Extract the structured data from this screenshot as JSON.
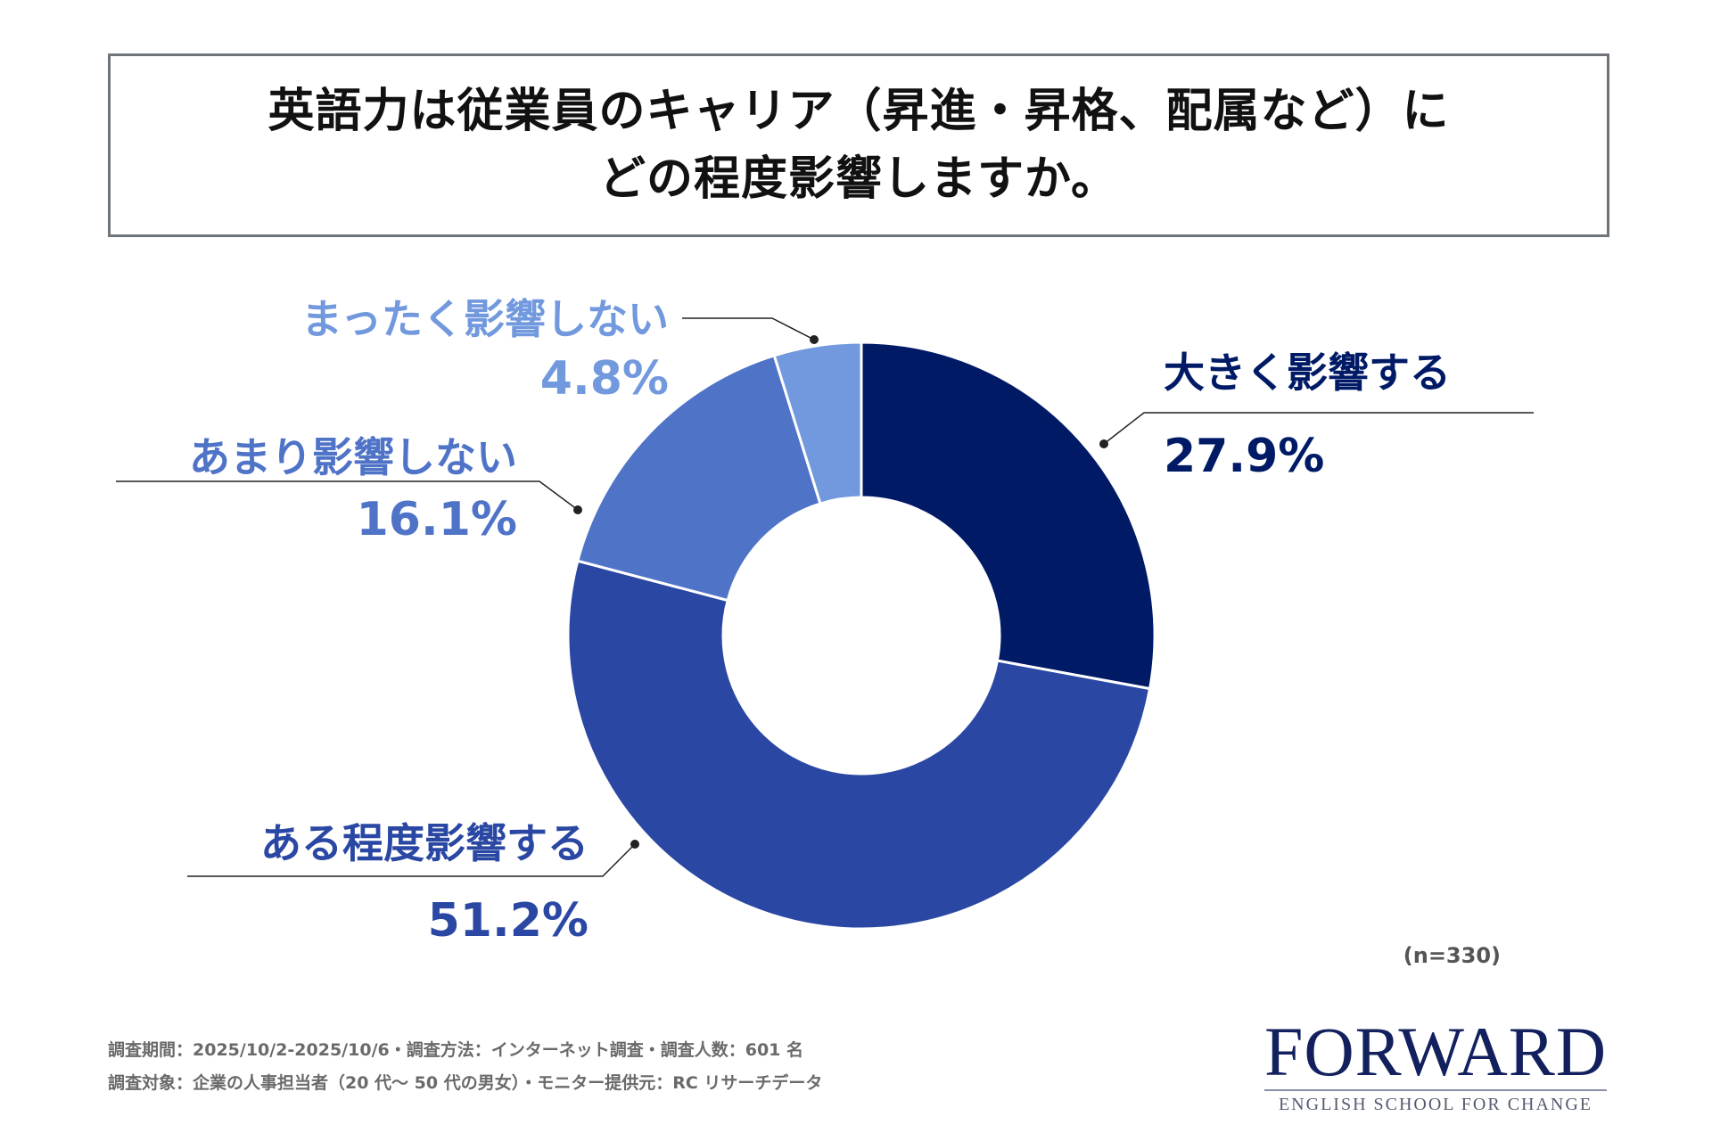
{
  "title": {
    "line1": "英語力は従業員のキャリア（昇進・昇格、配属など）に",
    "line2": "どの程度影響しますか。"
  },
  "chart_data": {
    "type": "pie",
    "donut": true,
    "title": "英語力は従業員のキャリア（昇進・昇格、配属など）にどの程度影響しますか。",
    "categories": [
      "大きく影響する",
      "ある程度影響する",
      "あまり影響しない",
      "まったく影響しない"
    ],
    "values": [
      27.9,
      51.2,
      16.1,
      4.8
    ],
    "value_labels": [
      "27.9%",
      "51.2%",
      "16.1%",
      "4.8%"
    ],
    "colors": [
      "#001a66",
      "#2a48a3",
      "#4f73c7",
      "#7299de"
    ],
    "start": "12 o'clock",
    "direction": "clockwise"
  },
  "sample_size": "(n=330)",
  "footnotes": {
    "line1": "調査期間：2025/10/2-2025/10/6・調査方法：インターネット調査・調査人数：601 名",
    "line2": "調査対象：企業の人事担当者（20 代〜 50 代の男女）・モニター提供元：RC リサーチデータ"
  },
  "logo": {
    "name": "FORWARD",
    "tagline": "ENGLISH SCHOOL FOR CHANGE",
    "color": "#12205e"
  }
}
